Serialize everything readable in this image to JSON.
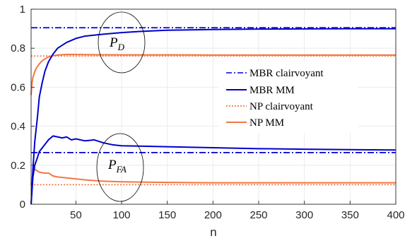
{
  "chart_data": {
    "type": "line",
    "xlabel": "n",
    "ylabel": "",
    "xlim": [
      1,
      400
    ],
    "ylim": [
      0,
      1
    ],
    "xticks": [
      50,
      100,
      150,
      200,
      250,
      300,
      350,
      400
    ],
    "yticks": [
      0,
      0.2,
      0.4,
      0.6,
      0.8,
      1
    ],
    "xtick_labels": [
      "50",
      "100",
      "150",
      "200",
      "250",
      "300",
      "350",
      "400"
    ],
    "ytick_labels": [
      "0",
      "0.2",
      "0.4",
      "0.6",
      "0.8",
      "1"
    ],
    "grid": true,
    "legend_position": "center-right",
    "series": [
      {
        "name": "MBR clairvoyant",
        "color": "#0000cd",
        "style": "dashdot",
        "x": [
          1,
          400
        ],
        "y": [
          0.905,
          0.905
        ]
      },
      {
        "name": "MBR clairvoyant",
        "color": "#0000cd",
        "style": "dashdot",
        "x": [
          1,
          400
        ],
        "y": [
          0.265,
          0.265
        ]
      },
      {
        "name": "MBR MM",
        "color": "#0000cd",
        "style": "solid",
        "x": [
          1,
          3,
          5,
          8,
          10,
          13,
          16,
          20,
          25,
          30,
          40,
          50,
          60,
          80,
          100,
          120,
          150,
          200,
          250,
          300,
          350,
          400
        ],
        "y": [
          0.0,
          0.18,
          0.32,
          0.45,
          0.55,
          0.62,
          0.68,
          0.73,
          0.77,
          0.8,
          0.83,
          0.85,
          0.862,
          0.872,
          0.88,
          0.886,
          0.892,
          0.896,
          0.898,
          0.899,
          0.9,
          0.9
        ]
      },
      {
        "name": "MBR MM",
        "color": "#0000cd",
        "style": "solid",
        "x": [
          1,
          3,
          5,
          8,
          10,
          15,
          20,
          25,
          30,
          35,
          40,
          45,
          50,
          60,
          70,
          80,
          90,
          100,
          120,
          150,
          200,
          250,
          300,
          350,
          400
        ],
        "y": [
          0.0,
          0.14,
          0.2,
          0.24,
          0.27,
          0.3,
          0.33,
          0.35,
          0.345,
          0.34,
          0.345,
          0.33,
          0.335,
          0.325,
          0.33,
          0.315,
          0.305,
          0.3,
          0.298,
          0.295,
          0.29,
          0.285,
          0.282,
          0.28,
          0.278
        ]
      },
      {
        "name": "NP clairvoyant",
        "color": "#f07844",
        "style": "dotted",
        "x": [
          1,
          400
        ],
        "y": [
          0.76,
          0.76
        ]
      },
      {
        "name": "NP clairvoyant",
        "color": "#f07844",
        "style": "dotted",
        "x": [
          1,
          400
        ],
        "y": [
          0.1,
          0.1
        ]
      },
      {
        "name": "NP MM",
        "color": "#f07844",
        "style": "solid",
        "x": [
          1,
          2,
          3,
          5,
          7,
          10,
          13,
          16,
          20,
          25,
          30,
          40,
          60,
          100,
          150,
          200,
          300,
          400
        ],
        "y": [
          0.56,
          0.62,
          0.65,
          0.68,
          0.7,
          0.72,
          0.735,
          0.745,
          0.755,
          0.762,
          0.765,
          0.768,
          0.767,
          0.766,
          0.766,
          0.765,
          0.765,
          0.765
        ]
      },
      {
        "name": "NP MM",
        "color": "#f07844",
        "style": "solid",
        "x": [
          1,
          3,
          5,
          8,
          10,
          15,
          20,
          25,
          30,
          40,
          50,
          60,
          80,
          100,
          150,
          200,
          300,
          400
        ],
        "y": [
          0.1,
          0.16,
          0.18,
          0.17,
          0.165,
          0.16,
          0.16,
          0.145,
          0.14,
          0.135,
          0.13,
          0.125,
          0.118,
          0.115,
          0.112,
          0.11,
          0.11,
          0.11
        ]
      }
    ],
    "legend": [
      {
        "label": "MBR clairvoyant",
        "color": "#0000cd",
        "style": "dashdot"
      },
      {
        "label": "MBR MM",
        "color": "#0000cd",
        "style": "solid"
      },
      {
        "label": "NP clairvoyant",
        "color": "#f07844",
        "style": "dotted"
      },
      {
        "label": "NP MM",
        "color": "#f07844",
        "style": "solid"
      }
    ],
    "annotations": [
      {
        "main": "P",
        "sub": "D",
        "at": [
          100,
          0.83
        ]
      },
      {
        "main": "P",
        "sub": "FA",
        "at": [
          100,
          0.2
        ]
      }
    ]
  }
}
